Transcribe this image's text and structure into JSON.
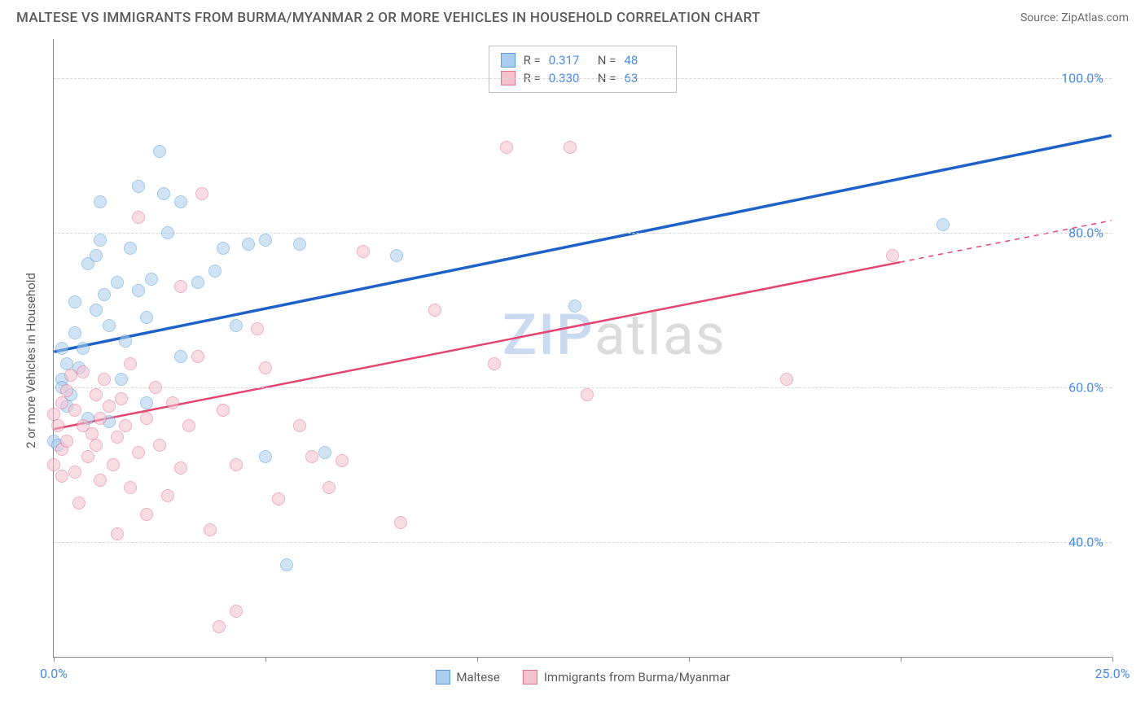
{
  "header": {
    "title": "MALTESE VS IMMIGRANTS FROM BURMA/MYANMAR 2 OR MORE VEHICLES IN HOUSEHOLD CORRELATION CHART",
    "source": "Source: ZipAtlas.com"
  },
  "watermark": {
    "z": "Z",
    "ip": "IP",
    "rest": "atlas"
  },
  "chart": {
    "type": "scatter",
    "background_color": "#ffffff",
    "grid_color": "#d8d8d8",
    "axis_color": "#888888",
    "xlim": [
      0,
      25
    ],
    "ylim": [
      25,
      105
    ],
    "x_ticks": [
      0,
      5,
      10,
      15,
      20,
      25
    ],
    "x_tick_labels": [
      "0.0%",
      "",
      "",
      "",
      "",
      "25.0%"
    ],
    "y_gridlines": [
      40,
      60,
      80,
      100
    ],
    "y_tick_labels": [
      "40.0%",
      "60.0%",
      "80.0%",
      "100.0%"
    ],
    "y_axis_label": "2 or more Vehicles in Household",
    "label_fontsize": 15,
    "tick_fontsize": 16,
    "tick_color": "#4a8ae8",
    "title_fontsize": 17,
    "marker_radius": 8,
    "marker_opacity": 0.55,
    "series": [
      {
        "name": "Maltese",
        "color_fill": "#a9cdee",
        "color_stroke": "#5a9bd8",
        "trend_color": "#1e62c9",
        "trend_width": 3.5,
        "R": "0.317",
        "N": "48",
        "trend": {
          "x1": 0.0,
          "y1": 64.5,
          "x2": 25.0,
          "y2": 92.5,
          "dash_from_x": null
        },
        "points": [
          [
            0.0,
            53.0
          ],
          [
            0.1,
            52.5
          ],
          [
            0.2,
            61.0
          ],
          [
            0.2,
            60.0
          ],
          [
            0.2,
            65.0
          ],
          [
            0.3,
            57.5
          ],
          [
            0.3,
            63.0
          ],
          [
            0.4,
            59.0
          ],
          [
            0.5,
            67.0
          ],
          [
            0.5,
            71.0
          ],
          [
            0.6,
            62.5
          ],
          [
            0.7,
            65.0
          ],
          [
            0.8,
            76.0
          ],
          [
            0.8,
            56.0
          ],
          [
            1.0,
            77.0
          ],
          [
            1.0,
            70.0
          ],
          [
            1.1,
            79.0
          ],
          [
            1.1,
            84.0
          ],
          [
            1.2,
            72.0
          ],
          [
            1.3,
            68.0
          ],
          [
            1.3,
            55.5
          ],
          [
            1.5,
            73.5
          ],
          [
            1.6,
            61.0
          ],
          [
            1.7,
            66.0
          ],
          [
            1.8,
            78.0
          ],
          [
            2.0,
            86.0
          ],
          [
            2.0,
            72.5
          ],
          [
            2.2,
            69.0
          ],
          [
            2.2,
            58.0
          ],
          [
            2.3,
            74.0
          ],
          [
            2.5,
            90.5
          ],
          [
            2.6,
            85.0
          ],
          [
            2.7,
            80.0
          ],
          [
            3.0,
            84.0
          ],
          [
            3.0,
            64.0
          ],
          [
            3.4,
            73.5
          ],
          [
            3.8,
            75.0
          ],
          [
            4.0,
            78.0
          ],
          [
            4.3,
            68.0
          ],
          [
            4.6,
            78.5
          ],
          [
            5.0,
            79.0
          ],
          [
            5.0,
            51.0
          ],
          [
            5.5,
            37.0
          ],
          [
            5.8,
            78.5
          ],
          [
            6.4,
            51.5
          ],
          [
            8.1,
            77.0
          ],
          [
            12.3,
            70.5
          ],
          [
            21.0,
            81.0
          ]
        ]
      },
      {
        "name": "Immigrants from Burma/Myanmar",
        "color_fill": "#f4c1cf",
        "color_stroke": "#e3708f",
        "trend_color": "#e54370",
        "trend_width": 2.5,
        "R": "0.330",
        "N": "63",
        "trend": {
          "x1": 0.0,
          "y1": 54.5,
          "x2": 25.0,
          "y2": 81.5,
          "dash_from_x": 20.0
        },
        "points": [
          [
            0.0,
            56.5
          ],
          [
            0.0,
            50.0
          ],
          [
            0.1,
            55.0
          ],
          [
            0.2,
            58.0
          ],
          [
            0.2,
            52.0
          ],
          [
            0.2,
            48.5
          ],
          [
            0.3,
            53.0
          ],
          [
            0.3,
            59.5
          ],
          [
            0.4,
            61.5
          ],
          [
            0.5,
            49.0
          ],
          [
            0.5,
            57.0
          ],
          [
            0.6,
            45.0
          ],
          [
            0.7,
            62.0
          ],
          [
            0.7,
            55.0
          ],
          [
            0.8,
            51.0
          ],
          [
            0.9,
            54.0
          ],
          [
            1.0,
            59.0
          ],
          [
            1.0,
            52.5
          ],
          [
            1.1,
            56.0
          ],
          [
            1.1,
            48.0
          ],
          [
            1.2,
            61.0
          ],
          [
            1.3,
            57.5
          ],
          [
            1.4,
            50.0
          ],
          [
            1.5,
            53.5
          ],
          [
            1.5,
            41.0
          ],
          [
            1.6,
            58.5
          ],
          [
            1.7,
            55.0
          ],
          [
            1.8,
            63.0
          ],
          [
            1.8,
            47.0
          ],
          [
            2.0,
            51.5
          ],
          [
            2.0,
            82.0
          ],
          [
            2.2,
            56.0
          ],
          [
            2.2,
            43.5
          ],
          [
            2.4,
            60.0
          ],
          [
            2.5,
            52.5
          ],
          [
            2.7,
            46.0
          ],
          [
            2.8,
            58.0
          ],
          [
            3.0,
            73.0
          ],
          [
            3.0,
            49.5
          ],
          [
            3.2,
            55.0
          ],
          [
            3.4,
            64.0
          ],
          [
            3.5,
            85.0
          ],
          [
            3.7,
            41.5
          ],
          [
            3.9,
            29.0
          ],
          [
            4.0,
            57.0
          ],
          [
            4.3,
            50.0
          ],
          [
            4.3,
            31.0
          ],
          [
            4.8,
            67.5
          ],
          [
            5.0,
            62.5
          ],
          [
            5.3,
            45.5
          ],
          [
            5.8,
            55.0
          ],
          [
            6.1,
            51.0
          ],
          [
            6.5,
            47.0
          ],
          [
            6.8,
            50.5
          ],
          [
            7.3,
            77.5
          ],
          [
            8.2,
            42.5
          ],
          [
            9.0,
            70.0
          ],
          [
            10.4,
            63.0
          ],
          [
            10.7,
            91.0
          ],
          [
            12.2,
            91.0
          ],
          [
            12.6,
            59.0
          ],
          [
            17.3,
            61.0
          ],
          [
            19.8,
            77.0
          ]
        ]
      }
    ],
    "legend_bottom": [
      {
        "label": "Maltese",
        "fill": "#a9cdee",
        "stroke": "#5a9bd8"
      },
      {
        "label": "Immigrants from Burma/Myanmar",
        "fill": "#f4c1cf",
        "stroke": "#e3708f"
      }
    ]
  }
}
